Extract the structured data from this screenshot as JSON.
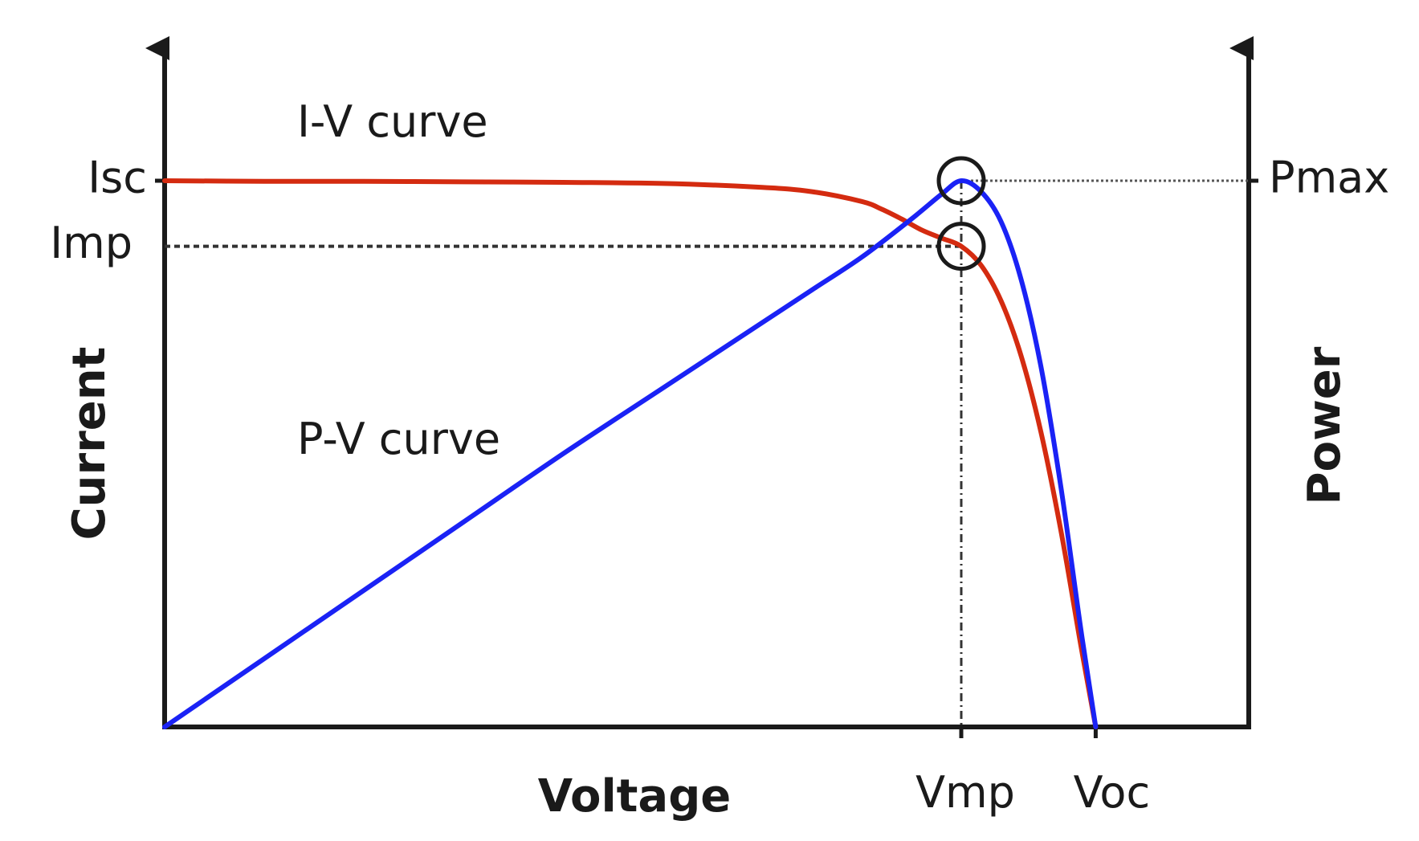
{
  "chart_data": {
    "type": "line",
    "title": "",
    "xlabel": "Voltage",
    "ylabel_left": "Current",
    "ylabel_right": "Power",
    "x_ticks": [
      "Vmp",
      "Voc"
    ],
    "y_left_ticks": [
      "Isc",
      "Imp"
    ],
    "y_right_ticks": [
      "Pmax"
    ],
    "xlim": [
      0,
      1.0
    ],
    "ylim": [
      0,
      1.0
    ],
    "key_points": {
      "Vmp": 0.8,
      "Voc": 0.935,
      "Isc": 1.0,
      "Imp": 0.88,
      "Pmax": 1.0
    },
    "series": [
      {
        "name": "I-V curve",
        "axis": "left",
        "color": "#d42b10",
        "x": [
          0,
          0.1,
          0.2,
          0.3,
          0.4,
          0.5,
          0.6,
          0.65,
          0.7,
          0.72,
          0.74,
          0.76,
          0.78,
          0.8,
          0.82,
          0.84,
          0.86,
          0.88,
          0.9,
          0.92,
          0.935
        ],
        "y": [
          1.0,
          0.999,
          0.999,
          0.998,
          0.997,
          0.995,
          0.988,
          0.98,
          0.962,
          0.948,
          0.93,
          0.91,
          0.895,
          0.88,
          0.845,
          0.78,
          0.68,
          0.54,
          0.36,
          0.15,
          0.0
        ]
      },
      {
        "name": "P-V curve",
        "axis": "right",
        "color": "#1a22f5",
        "x": [
          0,
          0.1,
          0.2,
          0.3,
          0.4,
          0.5,
          0.6,
          0.65,
          0.7,
          0.75,
          0.78,
          0.8,
          0.82,
          0.84,
          0.86,
          0.88,
          0.9,
          0.92,
          0.935
        ],
        "y": [
          0.0,
          0.125,
          0.25,
          0.375,
          0.5,
          0.62,
          0.74,
          0.8,
          0.86,
          0.93,
          0.975,
          1.0,
          0.98,
          0.925,
          0.82,
          0.66,
          0.44,
          0.18,
          0.0
        ]
      }
    ],
    "annotations": [
      {
        "text": "I-V curve",
        "series": "I-V curve"
      },
      {
        "text": "P-V curve",
        "series": "P-V curve"
      }
    ],
    "grid": false,
    "legend": "none"
  }
}
